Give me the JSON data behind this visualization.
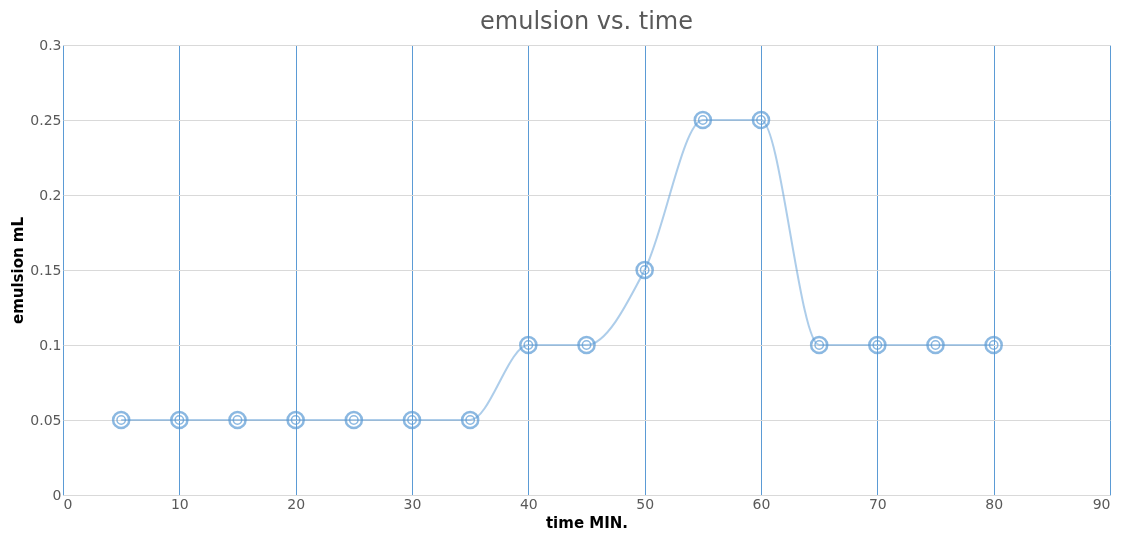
{
  "chart_data": {
    "type": "line",
    "title": "emulsion vs. time",
    "xlabel": "time  MIN.",
    "ylabel": "emulsion mL",
    "x": [
      5,
      10,
      15,
      20,
      25,
      30,
      35,
      40,
      45,
      50,
      55,
      60,
      65,
      70,
      75,
      80
    ],
    "series": [
      {
        "color": "#5b9bd5",
        "values": [
          0.05,
          0.05,
          0.05,
          0.05,
          0.05,
          0.05,
          0.05,
          0.1,
          0.1,
          0.15,
          0.25,
          0.25,
          0.1,
          0.1,
          0.1,
          0.1
        ]
      }
    ],
    "xlim": [
      0,
      90
    ],
    "xticks": [
      0,
      10,
      20,
      30,
      40,
      50,
      60,
      70,
      80,
      90
    ],
    "ylim": [
      0,
      0.3
    ],
    "yticks": [
      0,
      0.05,
      0.1,
      0.15,
      0.2,
      0.25,
      0.3
    ],
    "grid": true,
    "marker": "circle",
    "line_style": "solid"
  }
}
